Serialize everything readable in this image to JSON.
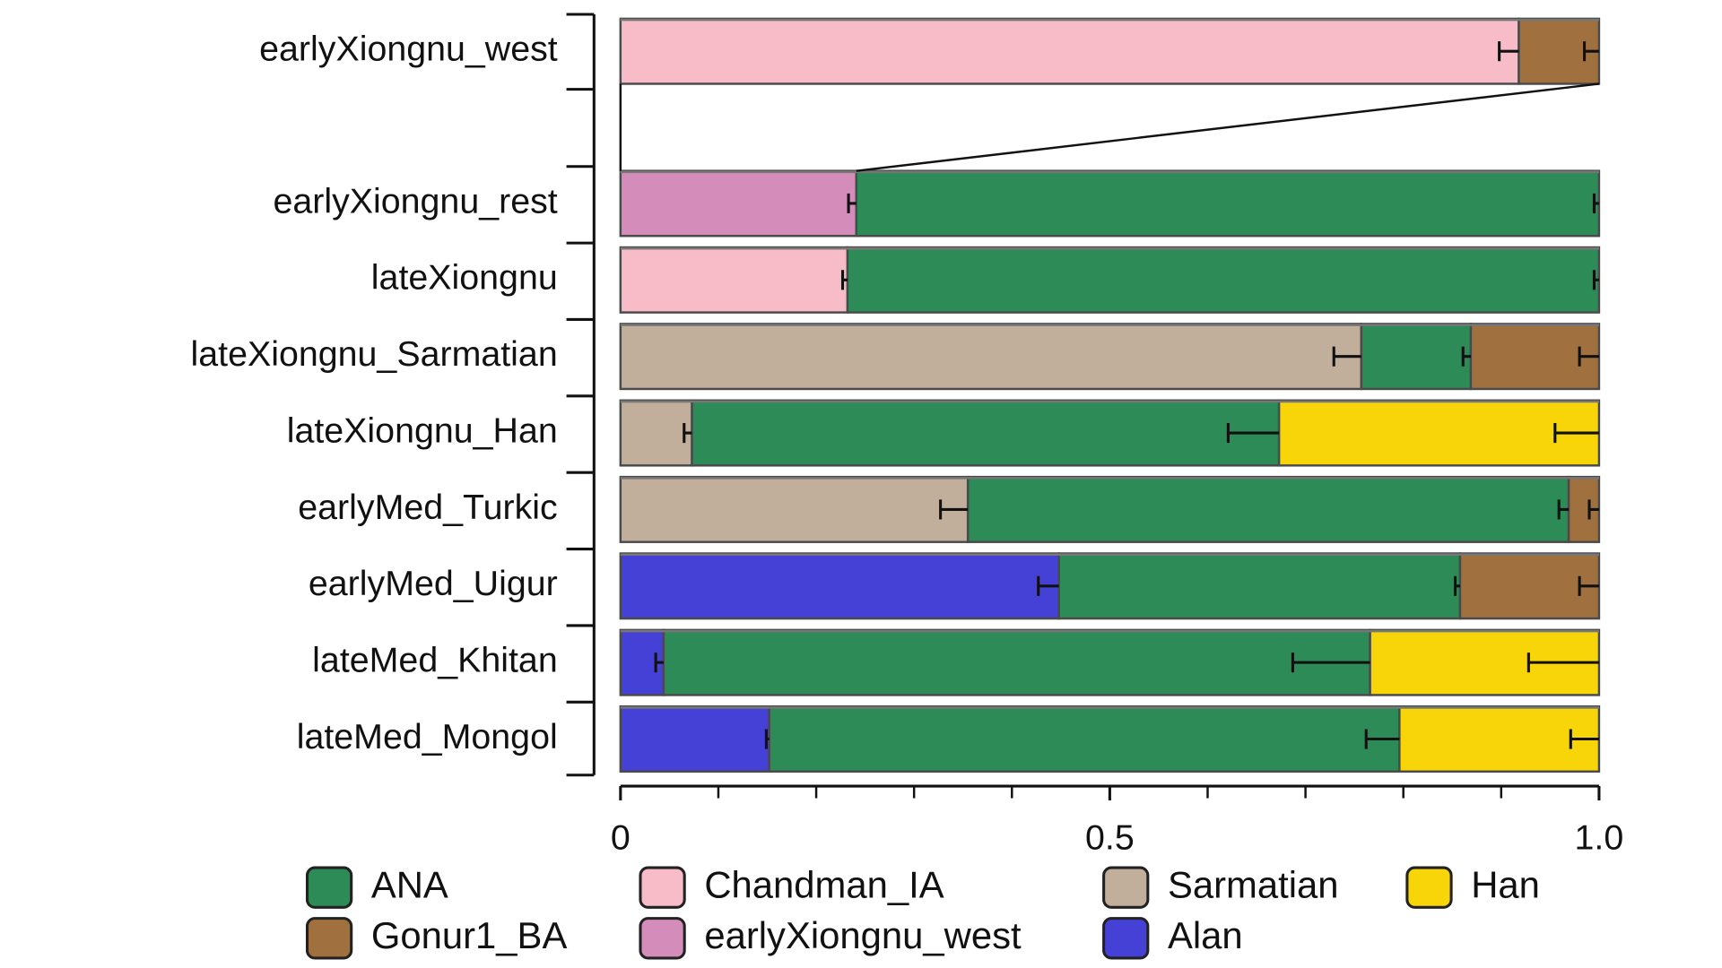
{
  "chart_data": {
    "type": "bar",
    "orientation": "horizontal",
    "stacked": true,
    "categories": [
      "earlyXiongnu_west",
      "earlyXiongnu_rest",
      "lateXiongnu",
      "lateXiongnu_Sarmatian",
      "lateXiongnu_Han",
      "earlyMed_Turkic",
      "earlyMed_Uigur",
      "lateMed_Khitan",
      "lateMed_Mongol"
    ],
    "series": [
      {
        "name": "Chandman_IA",
        "color": "#f8bcc8",
        "values": [
          0.918,
          null,
          0.232,
          null,
          null,
          null,
          null,
          null,
          null
        ],
        "errors": [
          0.02,
          null,
          0.005,
          null,
          null,
          null,
          null,
          null,
          null
        ]
      },
      {
        "name": "earlyXiongnu_west",
        "color": "#d48dba",
        "values": [
          null,
          0.241,
          null,
          null,
          null,
          null,
          null,
          null,
          null
        ],
        "errors": [
          null,
          0.008,
          null,
          null,
          null,
          null,
          null,
          null,
          null
        ]
      },
      {
        "name": "Sarmatian",
        "color": "#c2af9b",
        "values": [
          null,
          null,
          null,
          0.757,
          0.073,
          0.355,
          null,
          null,
          null
        ],
        "errors": [
          null,
          null,
          null,
          0.028,
          0.008,
          0.028,
          null,
          null,
          null
        ]
      },
      {
        "name": "Alan",
        "color": "#4540d6",
        "values": [
          null,
          null,
          null,
          null,
          null,
          null,
          0.448,
          0.044,
          0.152
        ],
        "errors": [
          null,
          null,
          null,
          null,
          null,
          null,
          0.021,
          0.008,
          0.003
        ]
      },
      {
        "name": "ANA",
        "color": "#2d8b57",
        "values": [
          null,
          0.759,
          0.768,
          0.112,
          0.6,
          0.614,
          0.41,
          0.722,
          0.644
        ],
        "errors": [
          null,
          0.005,
          0.005,
          0.008,
          0.052,
          0.01,
          0.005,
          0.079,
          0.034
        ]
      },
      {
        "name": "Gonur1_BA",
        "color": "#a0703f",
        "values": [
          0.082,
          null,
          null,
          0.131,
          null,
          0.031,
          0.142,
          null,
          null
        ],
        "errors": [
          0.015,
          null,
          null,
          0.02,
          null,
          0.01,
          0.02,
          null,
          null
        ]
      },
      {
        "name": "Han",
        "color": "#f8d508",
        "values": [
          null,
          null,
          null,
          null,
          0.327,
          null,
          null,
          0.234,
          0.204
        ],
        "errors": [
          null,
          null,
          null,
          null,
          0.045,
          null,
          null,
          0.072,
          0.029
        ]
      }
    ],
    "xlim": [
      0,
      1
    ],
    "xticks": [
      0,
      0.5,
      {
        "value": 1,
        "label": "1.0"
      }
    ],
    "xminorticks": [
      0.1,
      0.2,
      0.3,
      0.4,
      0.6,
      0.7,
      0.8,
      0.9
    ]
  }
}
